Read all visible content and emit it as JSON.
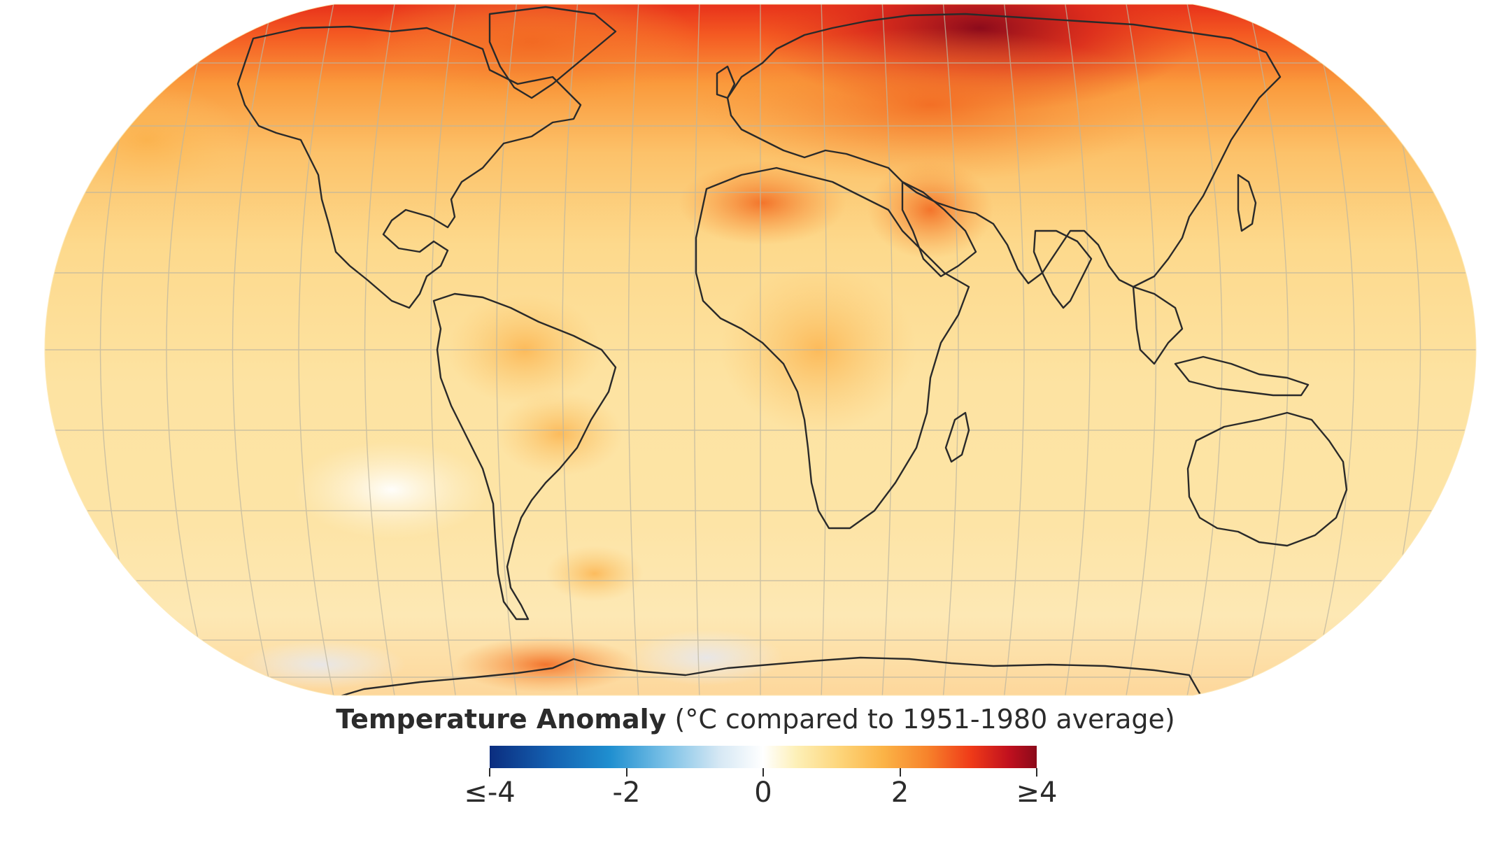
{
  "legend": {
    "title_bold": "Temperature Anomaly",
    "title_rest": " (°C compared to 1951-1980 average)",
    "range": [
      -4,
      4
    ],
    "ticks": [
      {
        "label": "≤-4",
        "value": -4
      },
      {
        "label": "-2",
        "value": -2
      },
      {
        "label": "0",
        "value": 0
      },
      {
        "label": "2",
        "value": 2
      },
      {
        "label": "≥4",
        "value": 4
      }
    ],
    "colorscale": [
      "#0b2d7f",
      "#1f8fd0",
      "#ffffff",
      "#fbb346",
      "#ef3a18",
      "#8b0a1a"
    ]
  },
  "map": {
    "projection": "Robinson",
    "ocean_base_color": "#fde7a6",
    "coastline_color": "#2a2a2a",
    "graticule_color": "#bdb6a0"
  }
}
